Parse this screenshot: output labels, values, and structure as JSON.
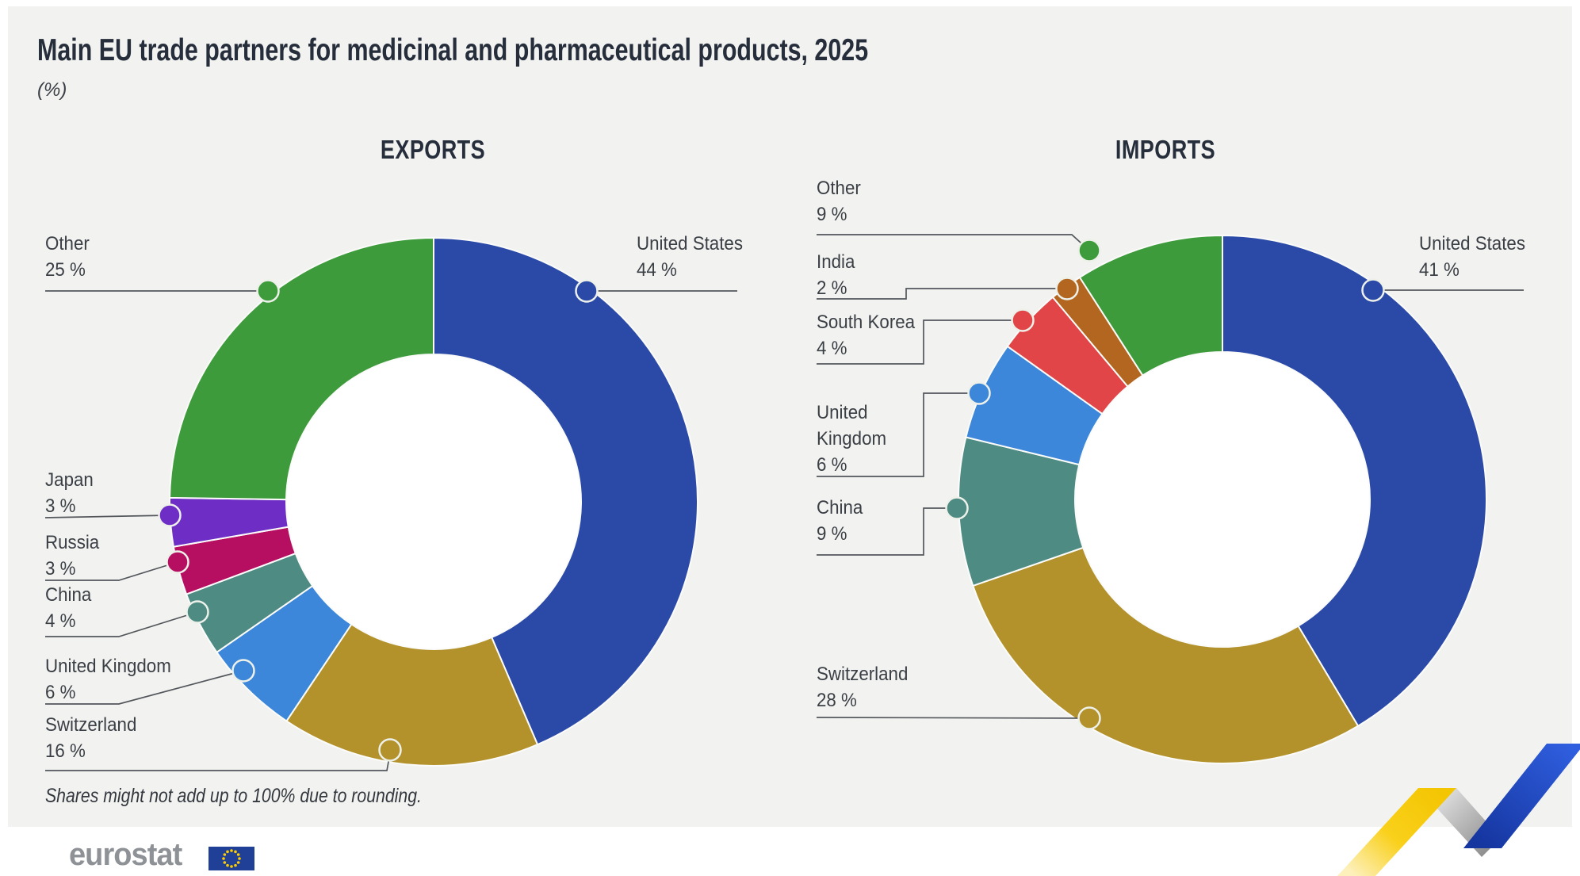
{
  "page": {
    "title": "Main EU trade partners for medicinal and pharmaceutical products, 2025",
    "unit_label": "(%)",
    "footnote": "Shares might not add up to 100% due to rounding.",
    "brand": {
      "wordmark": "eurostat",
      "flag_icon": "eu-flag-icon"
    }
  },
  "colors": {
    "background_card": "#f2f2f0",
    "page_background": "#ffffff",
    "text_dark": "#262e3c",
    "text_label": "#3a3f45",
    "leader_line": "#53575c",
    "slice_separator": "#fbfbfa",
    "eu_flag_blue": "#1f4096",
    "eu_flag_star_yellow": "#ffcc00",
    "ribbon_yellow": "#f6c90f",
    "ribbon_gray": "#aaaaaa",
    "ribbon_blue": "#2450c8"
  },
  "chart_data": [
    {
      "type": "pie",
      "subtype": "donut",
      "title": "EXPORTS",
      "unit": "%",
      "start_angle_deg": 0,
      "direction": "clockwise",
      "slices": [
        {
          "label": "United States",
          "value": 44,
          "value_label": "44 %",
          "color": "#2b4aa7"
        },
        {
          "label": "Switzerland",
          "value": 16,
          "value_label": "16 %",
          "color": "#b3922c"
        },
        {
          "label": "United Kingdom",
          "value": 6,
          "value_label": "6 %",
          "color": "#3c87d9"
        },
        {
          "label": "China",
          "value": 4,
          "value_label": "4 %",
          "color": "#4e8b83"
        },
        {
          "label": "Russia",
          "value": 3,
          "value_label": "3 %",
          "color": "#b60e60"
        },
        {
          "label": "Japan",
          "value": 3,
          "value_label": "3 %",
          "color": "#6e2ec6"
        },
        {
          "label": "Other",
          "value": 25,
          "value_label": "25 %",
          "color": "#3d9b3b"
        }
      ]
    },
    {
      "type": "pie",
      "subtype": "donut",
      "title": "IMPORTS",
      "unit": "%",
      "start_angle_deg": 0,
      "direction": "clockwise",
      "slices": [
        {
          "label": "United States",
          "value": 41,
          "value_label": "41 %",
          "color": "#2b4aa7"
        },
        {
          "label": "Switzerland",
          "value": 28,
          "value_label": "28 %",
          "color": "#b3922c"
        },
        {
          "label": "China",
          "value": 9,
          "value_label": "9 %",
          "color": "#4e8b83"
        },
        {
          "label": "United Kingdom",
          "value": 6,
          "value_label": "6 %",
          "color": "#3c87d9"
        },
        {
          "label": "South Korea",
          "value": 4,
          "value_label": "4 %",
          "color": "#e14547"
        },
        {
          "label": "India",
          "value": 2,
          "value_label": "2 %",
          "color": "#b2661f"
        },
        {
          "label": "Other",
          "value": 9,
          "value_label": "9 %",
          "color": "#3d9b3b"
        }
      ]
    }
  ]
}
